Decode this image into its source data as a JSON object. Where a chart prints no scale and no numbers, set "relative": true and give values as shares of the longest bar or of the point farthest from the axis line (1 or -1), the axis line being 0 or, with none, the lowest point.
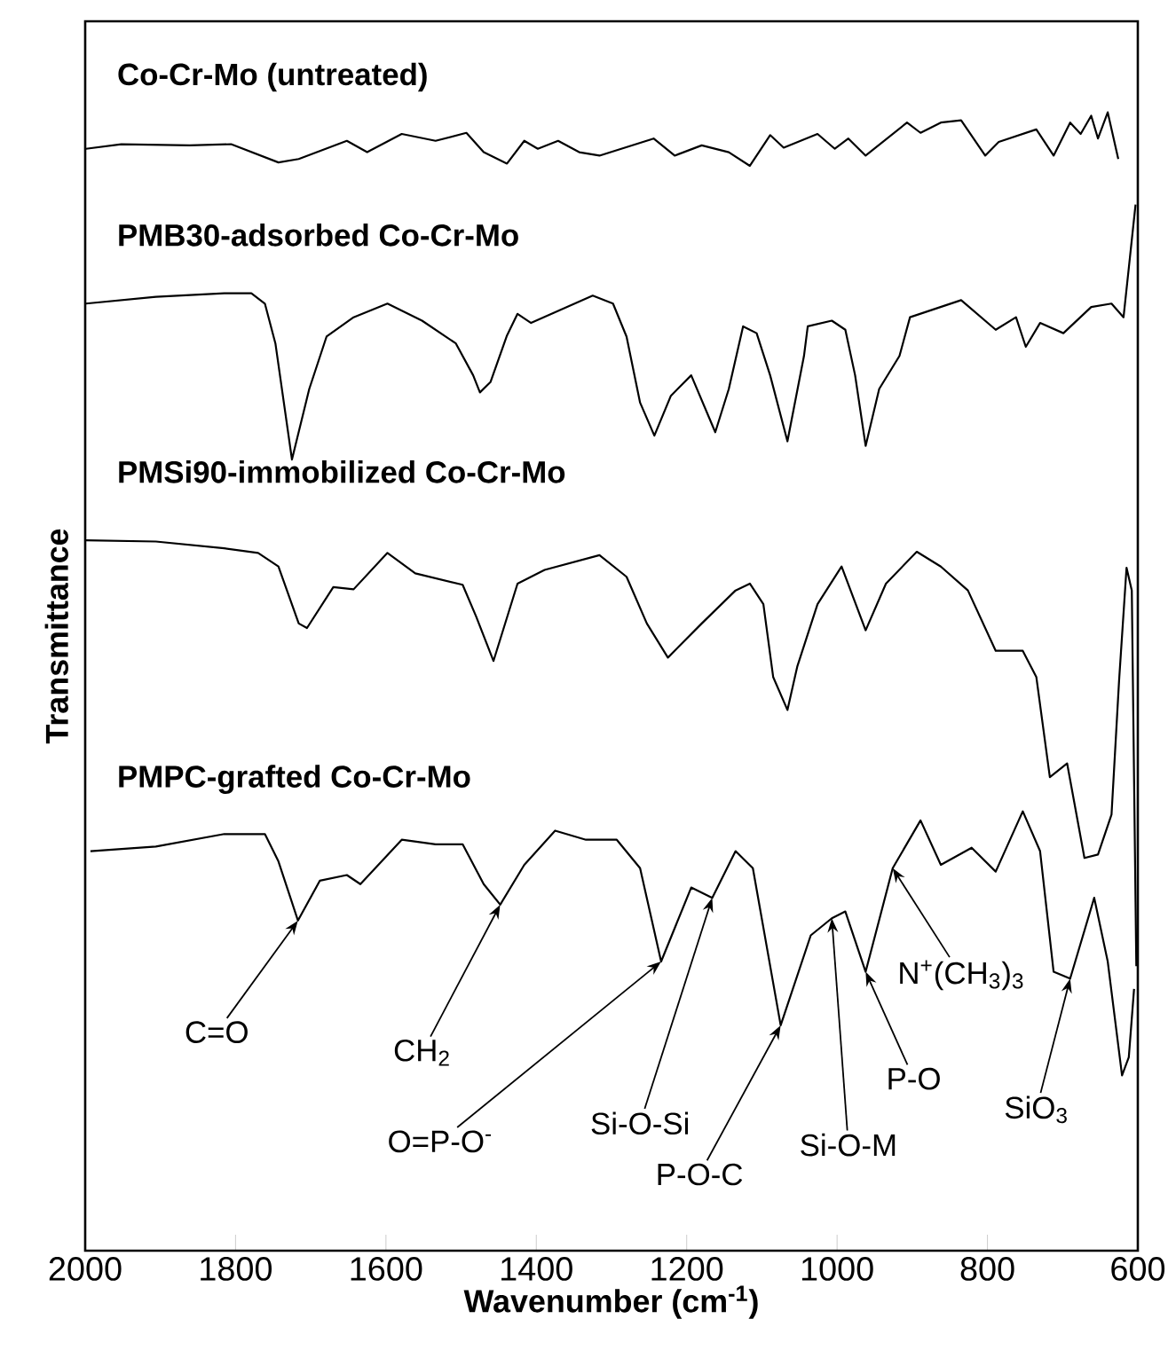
{
  "chart_data": {
    "type": "line",
    "relative": true,
    "xlabel": "Wavenumber (cm$^{-1}$)",
    "ylabel": "Transmittance",
    "xlim": [
      2000,
      600
    ],
    "xticks": [
      2000,
      1800,
      1600,
      1400,
      1200,
      1000,
      800,
      600
    ],
    "marker": "none",
    "line_style": "solid",
    "series": [
      {
        "name": "Co-Cr-Mo (untreated)",
        "color": "#000000",
        "x": [
          1999,
          1952,
          1861,
          1806,
          1743,
          1716,
          1652,
          1625,
          1579,
          1534,
          1493,
          1470,
          1439,
          1416,
          1398,
          1371,
          1343,
          1316,
          1244,
          1216,
          1180,
          1144,
          1116,
          1089,
          1071,
          1026,
          1003,
          985,
          962,
          907,
          889,
          862,
          835,
          803,
          785,
          735,
          712,
          690,
          676,
          662,
          653,
          640,
          626
        ],
        "values": [
          0.968,
          0.972,
          0.971,
          0.972,
          0.956,
          0.959,
          0.975,
          0.965,
          0.981,
          0.975,
          0.982,
          0.965,
          0.955,
          0.975,
          0.968,
          0.975,
          0.965,
          0.962,
          0.977,
          0.962,
          0.971,
          0.965,
          0.953,
          0.98,
          0.969,
          0.981,
          0.968,
          0.977,
          0.962,
          0.991,
          0.982,
          0.991,
          0.993,
          0.962,
          0.974,
          0.985,
          0.962,
          0.991,
          0.981,
          0.997,
          0.977,
          1.0,
          0.959
        ]
      },
      {
        "name": "PMB30-adsorbed Co-Cr-Mo",
        "color": "#000000",
        "x": [
          1999,
          1906,
          1815,
          1779,
          1761,
          1747,
          1725,
          1702,
          1679,
          1643,
          1598,
          1552,
          1507,
          1484,
          1475,
          1461,
          1439,
          1425,
          1407,
          1325,
          1298,
          1280,
          1262,
          1243,
          1221,
          1194,
          1162,
          1144,
          1125,
          1107,
          1089,
          1066,
          1044,
          1039,
          1007,
          989,
          976,
          962,
          944,
          917,
          903,
          835,
          789,
          762,
          749,
          730,
          699,
          662,
          635,
          619,
          603
        ],
        "values": [
          0.832,
          0.838,
          0.841,
          0.841,
          0.832,
          0.797,
          0.695,
          0.757,
          0.803,
          0.82,
          0.832,
          0.817,
          0.797,
          0.769,
          0.754,
          0.763,
          0.804,
          0.823,
          0.815,
          0.839,
          0.832,
          0.803,
          0.745,
          0.716,
          0.751,
          0.769,
          0.719,
          0.757,
          0.812,
          0.806,
          0.769,
          0.711,
          0.786,
          0.812,
          0.817,
          0.809,
          0.769,
          0.707,
          0.757,
          0.786,
          0.82,
          0.835,
          0.809,
          0.82,
          0.794,
          0.815,
          0.806,
          0.829,
          0.832,
          0.82,
          0.919
        ]
      },
      {
        "name": "PMSi90-immobilized Co-Cr-Mo",
        "color": "#000000",
        "x": [
          1999,
          1906,
          1815,
          1770,
          1743,
          1716,
          1705,
          1670,
          1643,
          1598,
          1561,
          1498,
          1480,
          1457,
          1425,
          1389,
          1316,
          1280,
          1253,
          1225,
          1180,
          1135,
          1116,
          1098,
          1085,
          1066,
          1053,
          1026,
          994,
          962,
          935,
          894,
          862,
          826,
          789,
          753,
          735,
          717,
          694,
          671,
          653,
          635,
          625,
          615,
          608,
          602
        ],
        "values": [
          0.624,
          0.623,
          0.617,
          0.613,
          0.601,
          0.551,
          0.547,
          0.583,
          0.581,
          0.613,
          0.595,
          0.585,
          0.557,
          0.518,
          0.586,
          0.598,
          0.611,
          0.592,
          0.551,
          0.521,
          0.551,
          0.58,
          0.586,
          0.568,
          0.504,
          0.475,
          0.513,
          0.568,
          0.601,
          0.545,
          0.586,
          0.614,
          0.601,
          0.58,
          0.527,
          0.527,
          0.504,
          0.416,
          0.428,
          0.345,
          0.348,
          0.383,
          0.5,
          0.6,
          0.58,
          0.25
        ]
      },
      {
        "name": "PMPC-grafted Co-Cr-Mo",
        "color": "#000000",
        "x": [
          1993,
          1906,
          1815,
          1761,
          1743,
          1717,
          1688,
          1652,
          1634,
          1579,
          1534,
          1498,
          1470,
          1448,
          1416,
          1375,
          1334,
          1293,
          1262,
          1234,
          1194,
          1166,
          1135,
          1112,
          1075,
          1035,
          1007,
          989,
          962,
          926,
          889,
          862,
          821,
          789,
          753,
          730,
          712,
          690,
          658,
          640,
          621,
          612,
          605
        ],
        "values": [
          0.351,
          0.355,
          0.366,
          0.366,
          0.342,
          0.29,
          0.325,
          0.33,
          0.322,
          0.361,
          0.357,
          0.357,
          0.322,
          0.304,
          0.339,
          0.369,
          0.361,
          0.361,
          0.336,
          0.254,
          0.319,
          0.31,
          0.351,
          0.336,
          0.198,
          0.277,
          0.292,
          0.298,
          0.245,
          0.336,
          0.378,
          0.339,
          0.354,
          0.333,
          0.386,
          0.351,
          0.245,
          0.239,
          0.31,
          0.254,
          0.154,
          0.17,
          0.23
        ]
      }
    ],
    "annotations": [
      {
        "text": "C=O",
        "x": 1717,
        "y": 0.29
      },
      {
        "text": "CH$_{2}$",
        "x": 1448,
        "y": 0.304
      },
      {
        "text": "O=P-O$^{-}$",
        "x": 1234,
        "y": 0.254
      },
      {
        "text": "Si-O-Si",
        "x": 1166,
        "y": 0.31
      },
      {
        "text": "P-O-C",
        "x": 1075,
        "y": 0.198
      },
      {
        "text": "Si-O-M",
        "x": 1007,
        "y": 0.292
      },
      {
        "text": "P-O",
        "x": 962,
        "y": 0.245
      },
      {
        "text": "N$^{+}$(CH$_{3}$)$_{3}$",
        "x": 926,
        "y": 0.336
      },
      {
        "text": "SiO$_{3}$",
        "x": 690,
        "y": 0.239
      }
    ]
  }
}
